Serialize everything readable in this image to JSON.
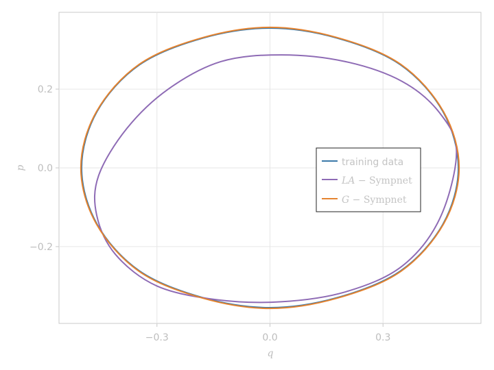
{
  "chart_data": {
    "type": "line",
    "xlabel": "q",
    "ylabel": "p",
    "xlim": [
      -0.56,
      0.56
    ],
    "ylim": [
      -0.395,
      0.395
    ],
    "xticks": [
      -0.3,
      0.0,
      0.3
    ],
    "xtick_labels": [
      "−0.3",
      "0.0",
      "0.3"
    ],
    "yticks": [
      -0.2,
      0.0,
      0.2
    ],
    "ytick_labels": [
      "−0.2",
      "0.0",
      "0.2"
    ],
    "grid": true,
    "legend_position": "right",
    "series": [
      {
        "name": "training data",
        "color": "#3a78a8",
        "x": [
          0.5,
          0.459,
          0.346,
          0.177,
          0.0,
          -0.177,
          -0.346,
          -0.459,
          -0.5,
          -0.459,
          -0.346,
          -0.177,
          0.0,
          0.177,
          0.346,
          0.459,
          0.5
        ],
        "y": [
          0.0,
          0.143,
          0.262,
          0.33,
          0.355,
          0.33,
          0.262,
          0.143,
          0.0,
          -0.143,
          -0.262,
          -0.33,
          -0.355,
          -0.33,
          -0.262,
          -0.143,
          0.0
        ]
      },
      {
        "name": "LA − Sympnet",
        "name_parts": [
          "LA",
          " − Sympnet"
        ],
        "color": "#8e6bb5",
        "x": [
          0.495,
          0.45,
          0.35,
          0.2,
          0.03,
          -0.13,
          -0.27,
          -0.38,
          -0.455,
          -0.46,
          -0.41,
          -0.3,
          -0.14,
          0.03,
          0.2,
          0.35,
          0.45,
          0.495
        ],
        "y": [
          0.04,
          0.14,
          0.22,
          0.27,
          0.287,
          0.27,
          0.2,
          0.1,
          -0.02,
          -0.12,
          -0.22,
          -0.3,
          -0.335,
          -0.34,
          -0.315,
          -0.25,
          -0.13,
          0.04
        ]
      },
      {
        "name": "G − Sympnet",
        "name_parts": [
          "G",
          " − Sympnet"
        ],
        "color": "#e5832f",
        "x": [
          0.502,
          0.461,
          0.347,
          0.178,
          0.0,
          -0.178,
          -0.347,
          -0.461,
          -0.502,
          -0.461,
          -0.347,
          -0.178,
          0.0,
          0.178,
          0.347,
          0.461,
          0.502
        ],
        "y": [
          0.0,
          0.142,
          0.263,
          0.331,
          0.357,
          0.331,
          0.263,
          0.142,
          0.0,
          -0.142,
          -0.263,
          -0.331,
          -0.357,
          -0.331,
          -0.263,
          -0.142,
          0.0
        ]
      }
    ]
  }
}
